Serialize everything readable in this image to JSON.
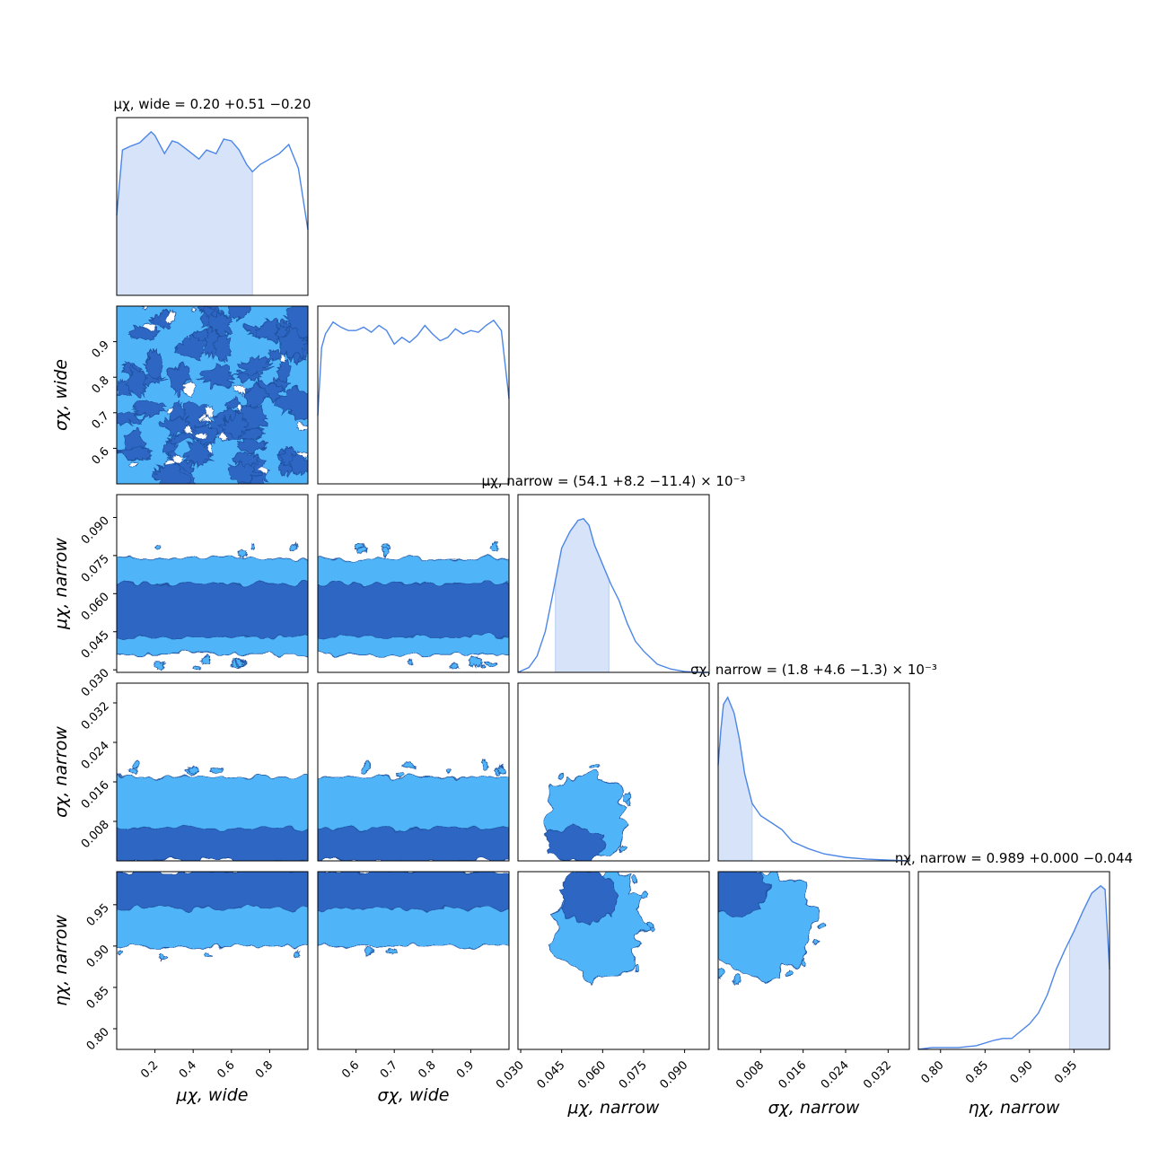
{
  "chart_data": {
    "type": "corner",
    "parameters": [
      {
        "key": "mu_wide",
        "label": "μχ, wide",
        "range": [
          0.0,
          1.0
        ],
        "ticks": [
          "0.2",
          "0.4",
          "0.6",
          "0.8"
        ],
        "title": "μχ, wide = 0.20 +0.51 −0.20",
        "median": 0.2,
        "err_plus": 0.51,
        "err_minus": 0.2
      },
      {
        "key": "sigma_wide",
        "label": "σχ, wide",
        "range": [
          0.5,
          1.0
        ],
        "ticks": [
          "0.6",
          "0.7",
          "0.8",
          "0.9"
        ],
        "title": "",
        "median": null,
        "err_plus": null,
        "err_minus": null
      },
      {
        "key": "mu_narrow",
        "label": "μχ, narrow",
        "range": [
          0.029,
          0.099
        ],
        "ticks": [
          "0.030",
          "0.045",
          "0.060",
          "0.075",
          "0.090"
        ],
        "title": "μχ, narrow = (54.1 +8.2 −11.4) × 10⁻³",
        "median": 0.0541,
        "err_plus": 0.0082,
        "err_minus": 0.0114
      },
      {
        "key": "sigma_narrow",
        "label": "σχ, narrow",
        "range": [
          0.0,
          0.036
        ],
        "ticks": [
          "0.008",
          "0.016",
          "0.024",
          "0.032"
        ],
        "title": "σχ, narrow = (1.8 +4.6 −1.3) × 10⁻³",
        "median": 0.0018,
        "err_plus": 0.0046,
        "err_minus": 0.0013
      },
      {
        "key": "eta_narrow",
        "label": "ηχ, narrow",
        "range": [
          0.775,
          0.99
        ],
        "ticks": [
          "0.80",
          "0.85",
          "0.90",
          "0.95"
        ],
        "title": "ηχ, narrow = 0.989 +0.000 −0.044",
        "median": 0.989,
        "err_plus": 0.0,
        "err_minus": 0.044
      }
    ],
    "marginals": [
      {
        "param": "mu_wide",
        "shaded_interval": [
          0.0,
          0.71
        ],
        "x": [
          0.0,
          0.03,
          0.07,
          0.12,
          0.18,
          0.2,
          0.25,
          0.29,
          0.32,
          0.37,
          0.43,
          0.47,
          0.52,
          0.56,
          0.6,
          0.64,
          0.68,
          0.71,
          0.75,
          0.8,
          0.85,
          0.9,
          0.95,
          1.0
        ],
        "density": [
          0.44,
          0.8,
          0.82,
          0.84,
          0.9,
          0.88,
          0.78,
          0.85,
          0.84,
          0.8,
          0.75,
          0.8,
          0.78,
          0.86,
          0.85,
          0.8,
          0.72,
          0.68,
          0.72,
          0.75,
          0.78,
          0.83,
          0.7,
          0.36
        ]
      },
      {
        "param": "sigma_wide",
        "shaded_interval": null,
        "x": [
          0.5,
          0.51,
          0.52,
          0.54,
          0.56,
          0.58,
          0.6,
          0.62,
          0.64,
          0.66,
          0.68,
          0.7,
          0.72,
          0.74,
          0.76,
          0.78,
          0.8,
          0.82,
          0.84,
          0.86,
          0.88,
          0.9,
          0.92,
          0.94,
          0.96,
          0.98,
          0.99,
          1.0
        ],
        "density": [
          0.4,
          0.8,
          0.88,
          0.95,
          0.92,
          0.9,
          0.9,
          0.92,
          0.89,
          0.93,
          0.9,
          0.82,
          0.86,
          0.83,
          0.87,
          0.93,
          0.88,
          0.84,
          0.86,
          0.91,
          0.88,
          0.9,
          0.89,
          0.93,
          0.96,
          0.9,
          0.7,
          0.5
        ]
      },
      {
        "param": "mu_narrow",
        "shaded_interval": [
          0.0427,
          0.0623
        ],
        "x": [
          0.029,
          0.033,
          0.036,
          0.039,
          0.042,
          0.045,
          0.048,
          0.051,
          0.053,
          0.055,
          0.057,
          0.06,
          0.063,
          0.066,
          0.069,
          0.072,
          0.075,
          0.08,
          0.085,
          0.09,
          0.095,
          0.099
        ],
        "density": [
          0.0,
          0.03,
          0.1,
          0.25,
          0.5,
          0.76,
          0.86,
          0.93,
          0.94,
          0.9,
          0.78,
          0.66,
          0.54,
          0.44,
          0.3,
          0.19,
          0.13,
          0.05,
          0.02,
          0.005,
          0.0,
          0.0
        ],
        "max_density": 1.0
      },
      {
        "param": "sigma_narrow",
        "shaded_interval": [
          0.0,
          0.0064
        ],
        "x": [
          0.0,
          0.0005,
          0.001,
          0.0018,
          0.003,
          0.004,
          0.005,
          0.0064,
          0.008,
          0.01,
          0.012,
          0.014,
          0.017,
          0.02,
          0.024,
          0.028,
          0.032,
          0.036
        ],
        "density": [
          0.55,
          0.75,
          0.9,
          0.94,
          0.85,
          0.7,
          0.5,
          0.33,
          0.26,
          0.22,
          0.18,
          0.11,
          0.07,
          0.04,
          0.02,
          0.01,
          0.005,
          0.0
        ]
      },
      {
        "param": "eta_narrow",
        "shaded_interval": [
          0.945,
          0.99
        ],
        "x": [
          0.775,
          0.79,
          0.8,
          0.82,
          0.84,
          0.86,
          0.87,
          0.88,
          0.89,
          0.9,
          0.91,
          0.92,
          0.93,
          0.94,
          0.95,
          0.96,
          0.97,
          0.98,
          0.985,
          0.99
        ],
        "density": [
          0.0,
          0.01,
          0.01,
          0.01,
          0.02,
          0.05,
          0.06,
          0.06,
          0.1,
          0.14,
          0.2,
          0.3,
          0.44,
          0.55,
          0.65,
          0.76,
          0.86,
          0.9,
          0.88,
          0.44
        ]
      }
    ],
    "contour_levels": [
      "inner credible region (dark blue)",
      "outer credible region (light blue)"
    ],
    "joint_regions": [
      {
        "x": "mu_wide",
        "y": "sigma_wide",
        "shape": "uniform-patchy",
        "outer": [
          0.0,
          1.0,
          0.5,
          1.0
        ],
        "inner": [
          0.0,
          1.0,
          0.5,
          1.0
        ]
      },
      {
        "x": "mu_wide",
        "y": "mu_narrow",
        "shape": "band",
        "outer_y": [
          0.036,
          0.074
        ],
        "inner_y": [
          0.043,
          0.064
        ]
      },
      {
        "x": "sigma_wide",
        "y": "mu_narrow",
        "shape": "band",
        "outer_y": [
          0.036,
          0.074
        ],
        "inner_y": [
          0.043,
          0.064
        ]
      },
      {
        "x": "mu_wide",
        "y": "sigma_narrow",
        "shape": "band",
        "outer_y": [
          0.0,
          0.017
        ],
        "inner_y": [
          0.0,
          0.0065
        ]
      },
      {
        "x": "sigma_wide",
        "y": "sigma_narrow",
        "shape": "band",
        "outer_y": [
          0.0,
          0.017
        ],
        "inner_y": [
          0.0,
          0.0065
        ]
      },
      {
        "x": "mu_narrow",
        "y": "sigma_narrow",
        "shape": "blob",
        "outer_center": [
          0.054,
          0.009
        ],
        "outer_radius": [
          0.014,
          0.009
        ],
        "inner_center": [
          0.05,
          0.0035
        ],
        "inner_radius": [
          0.011,
          0.0035
        ]
      },
      {
        "x": "mu_wide",
        "y": "eta_narrow",
        "shape": "band",
        "outer_y": [
          0.9,
          0.99
        ],
        "inner_y": [
          0.945,
          0.99
        ]
      },
      {
        "x": "sigma_wide",
        "y": "eta_narrow",
        "shape": "band",
        "outer_y": [
          0.9,
          0.99
        ],
        "inner_y": [
          0.945,
          0.99
        ]
      },
      {
        "x": "mu_narrow",
        "y": "eta_narrow",
        "shape": "blob",
        "outer_center": [
          0.058,
          0.925
        ],
        "outer_radius": [
          0.017,
          0.065
        ],
        "inner_center": [
          0.055,
          0.96
        ],
        "inner_radius": [
          0.01,
          0.033
        ]
      },
      {
        "x": "sigma_narrow",
        "y": "eta_narrow",
        "shape": "blob",
        "outer_center": [
          0.007,
          0.93
        ],
        "outer_radius": [
          0.011,
          0.065
        ],
        "inner_center": [
          0.0035,
          0.965
        ],
        "inner_radius": [
          0.006,
          0.03
        ]
      }
    ],
    "colors": {
      "line": "#4c86e8",
      "fill": "#d6e3f9",
      "inner": "#2d66c4",
      "outer": "#4fb4f8",
      "edge": "#1f4f9c"
    }
  }
}
